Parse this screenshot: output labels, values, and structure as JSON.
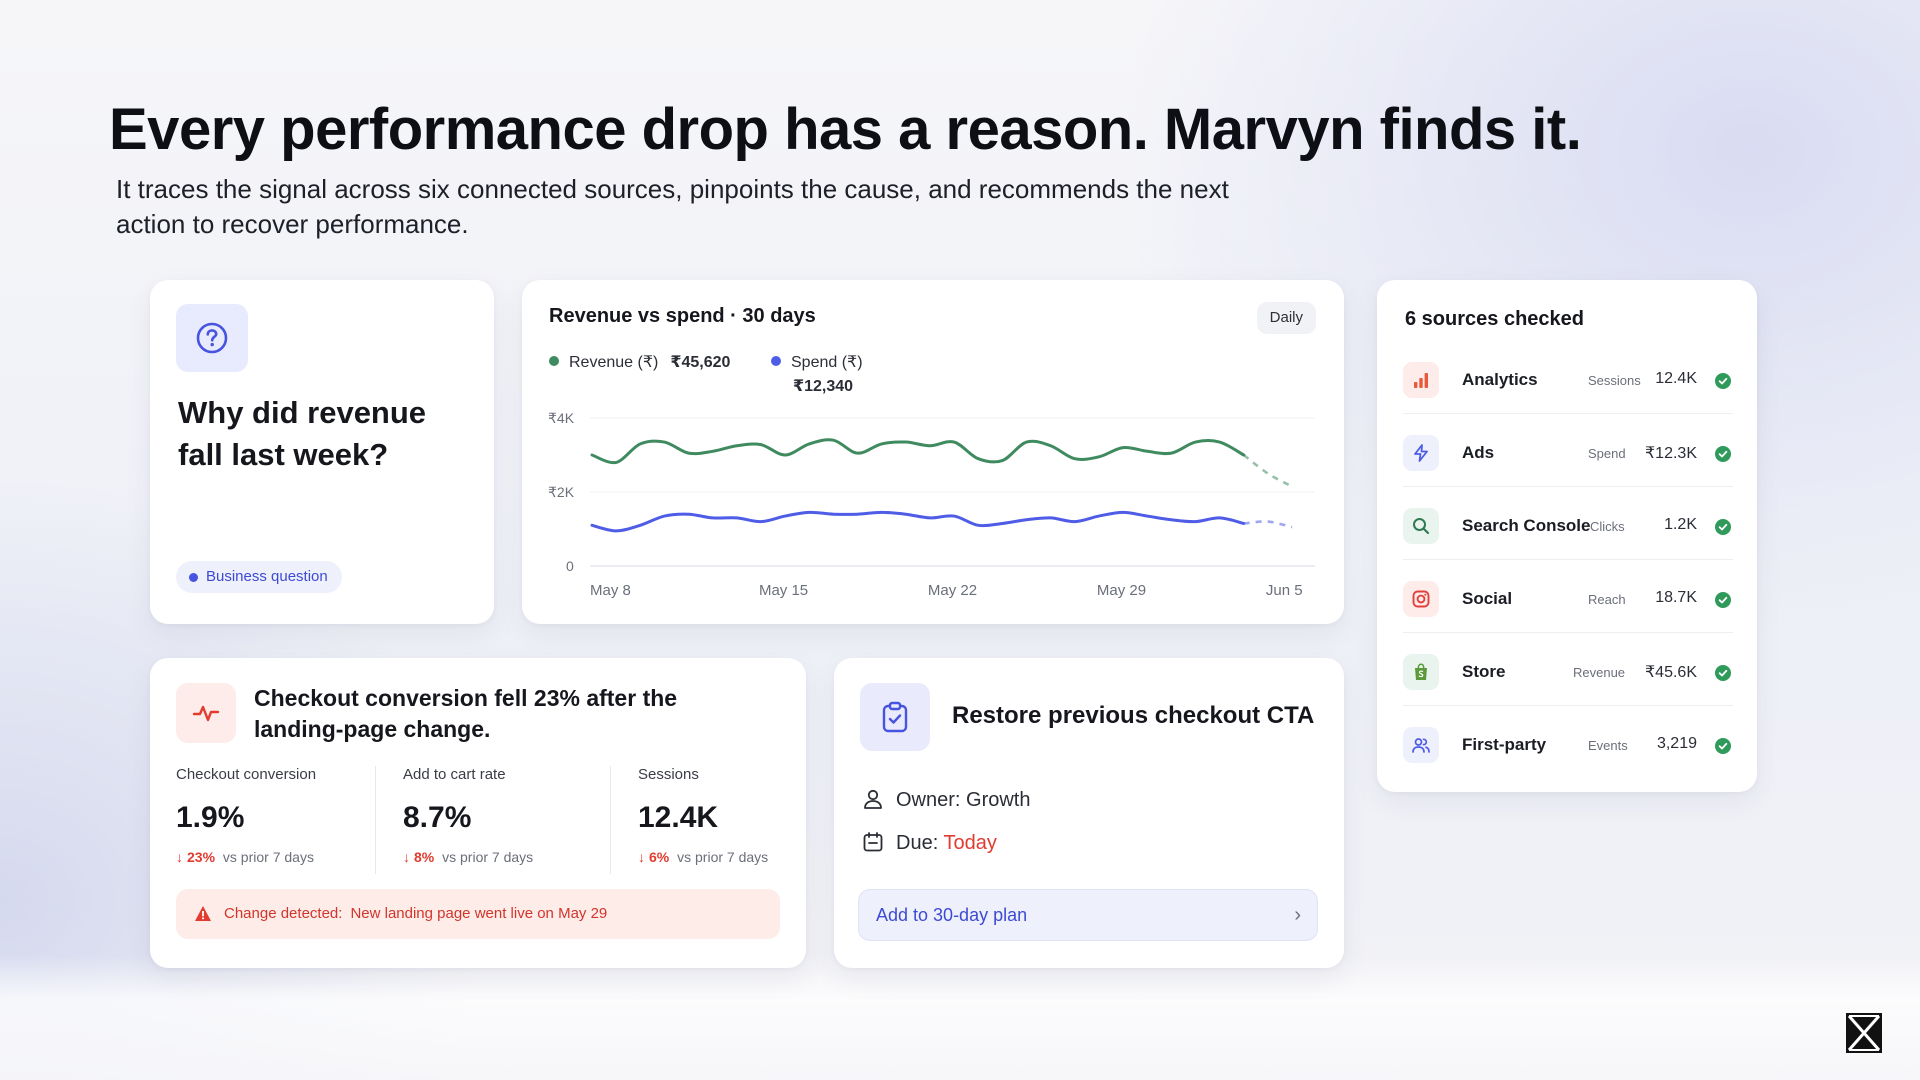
{
  "hero": {
    "title": "Every performance drop has a reason. Marvyn finds it.",
    "subtitle": "It traces the signal across six connected sources, pinpoints the cause, and recommends the next action to recover performance."
  },
  "question_card": {
    "icon": "question-circle-icon",
    "title": "Why did revenue fall last week?",
    "pill": "Business question"
  },
  "chart_card": {
    "title": "Revenue vs spend · 30 days",
    "period_button": "Daily",
    "legend": [
      {
        "label": "Revenue (₹)",
        "value": "₹45,620",
        "color": "#3f8a5f"
      },
      {
        "label": "Spend (₹)",
        "value": "₹12,340",
        "color": "#4f5ce6"
      }
    ]
  },
  "chart_data": {
    "type": "line",
    "title": "Revenue vs spend · 30 days",
    "y_ticks": [
      "₹4K",
      "₹2K",
      "0"
    ],
    "ylim": [
      0,
      4000
    ],
    "x_ticks": [
      "May 8",
      "May 15",
      "May 22",
      "May 29",
      "Jun 5"
    ],
    "x": [
      1,
      2,
      3,
      4,
      5,
      6,
      7,
      8,
      9,
      10,
      11,
      12,
      13,
      14,
      15,
      16,
      17,
      18,
      19,
      20,
      21,
      22,
      23,
      24,
      25,
      26,
      27,
      28,
      29,
      30
    ],
    "series": [
      {
        "name": "Revenue (₹)",
        "color": "#3f8a5f",
        "values": [
          3000,
          2800,
          3300,
          3350,
          3050,
          3100,
          3250,
          3280,
          3000,
          3300,
          3400,
          3050,
          3300,
          3350,
          3250,
          3350,
          2900,
          2850,
          3350,
          3250,
          2900,
          2950,
          3200,
          3100,
          3050,
          3350,
          3350,
          3000,
          2500,
          2150
        ],
        "dashed_from_index": 27
      },
      {
        "name": "Spend (₹)",
        "color": "#4f5ce6",
        "values": [
          1100,
          950,
          1100,
          1350,
          1400,
          1300,
          1300,
          1200,
          1350,
          1450,
          1400,
          1400,
          1450,
          1400,
          1300,
          1350,
          1100,
          1150,
          1250,
          1300,
          1200,
          1350,
          1450,
          1350,
          1250,
          1200,
          1300,
          1150,
          1200,
          1050
        ],
        "dashed_from_index": 27
      }
    ],
    "grid": true
  },
  "sources_card": {
    "title": "6 sources checked",
    "sources": [
      {
        "name": "Analytics",
        "metric": "Sessions",
        "value": "12.4K",
        "icon": "bar-chart-icon",
        "tint": "#fdecea",
        "color": "#e85a3a"
      },
      {
        "name": "Ads",
        "metric": "Spend",
        "value": "₹12.3K",
        "icon": "lightning-icon",
        "tint": "#eef0fc",
        "color": "#4f5ce6"
      },
      {
        "name": "Search Console",
        "metric": "Clicks",
        "value": "1.2K",
        "icon": "search-icon",
        "tint": "#eaf4ee",
        "color": "#2f7a52"
      },
      {
        "name": "Social",
        "metric": "Reach",
        "value": "18.7K",
        "icon": "instagram-icon",
        "tint": "#fdecea",
        "color": "#e2413a"
      },
      {
        "name": "Store",
        "metric": "Revenue",
        "value": "₹45.6K",
        "icon": "shopping-bag-icon",
        "tint": "#eaf4ee",
        "color": "#5a9a3a"
      },
      {
        "name": "First-party",
        "metric": "Events",
        "value": "3,219",
        "icon": "users-icon",
        "tint": "#eef0fc",
        "color": "#4f5ce6"
      }
    ]
  },
  "insight_card": {
    "title": "Checkout conversion fell 23% after the landing-page change.",
    "metrics": [
      {
        "label": "Checkout conversion",
        "value": "1.9%",
        "delta": "23%",
        "comparison": "vs prior 7 days"
      },
      {
        "label": "Add to cart rate",
        "value": "8.7%",
        "delta": "8%",
        "comparison": "vs prior 7 days"
      },
      {
        "label": "Sessions",
        "value": "12.4K",
        "delta": "6%",
        "comparison": "vs prior 7 days"
      }
    ],
    "alert_label": "Change detected:",
    "alert_text": "New landing page went live on May 29"
  },
  "action_card": {
    "title": "Restore previous checkout CTA",
    "owner": "Owner: Growth",
    "due_label": "Due:",
    "due_value": "Today",
    "plan_button": "Add to 30-day plan"
  },
  "colors": {
    "revenue": "#3f8a5f",
    "spend": "#4f5ce6",
    "accent": "#3e4bd1",
    "danger": "#e23b2f",
    "success": "#2f9a5a"
  }
}
